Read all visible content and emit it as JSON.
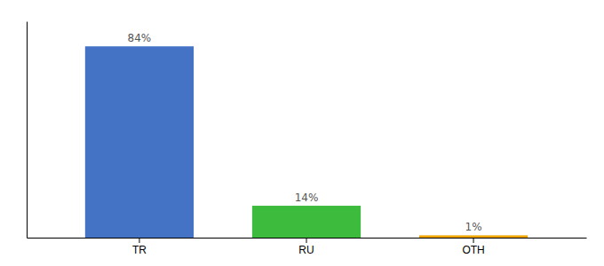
{
  "chart_data": {
    "type": "bar",
    "categories": [
      "TR",
      "RU",
      "OTH"
    ],
    "values": [
      84,
      14,
      1
    ],
    "value_labels": [
      "84%",
      "14%",
      "1%"
    ],
    "colors": [
      "#4472c4",
      "#3dbb3d",
      "#f0a500"
    ],
    "ylim": [
      0,
      95
    ],
    "data_labels": true,
    "tick_labels": "x",
    "grid": false
  }
}
